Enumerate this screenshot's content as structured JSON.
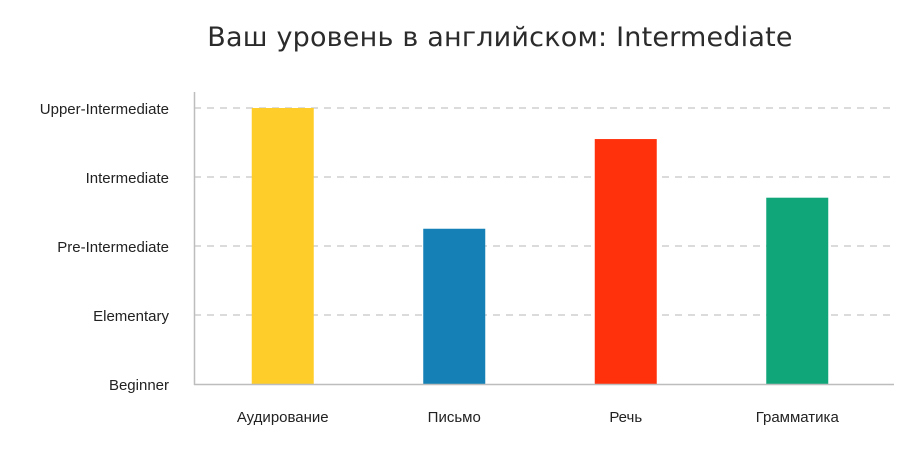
{
  "chart_data": {
    "type": "bar",
    "title": "Ваш уровень в английском: Intermediate",
    "xlabel": "",
    "ylabel": "",
    "y_levels": [
      "Beginner",
      "Elementary",
      "Pre-Intermediate",
      "Intermediate",
      "Upper-Intermediate"
    ],
    "ylim": [
      0,
      4
    ],
    "categories": [
      "Аудирование",
      "Письмо",
      "Речь",
      "Грамматика"
    ],
    "values": [
      4.0,
      2.25,
      3.55,
      2.7
    ],
    "colors": [
      "#FFCD2A",
      "#1580B5",
      "#FF310D",
      "#10A67A"
    ],
    "grid": true,
    "grid_style": "dashed",
    "legend": "none"
  }
}
